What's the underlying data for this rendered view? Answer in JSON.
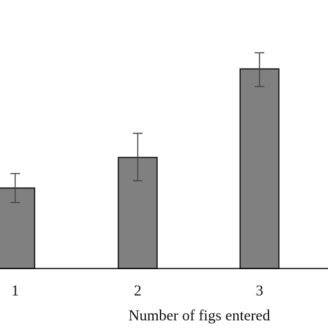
{
  "chart_data": {
    "type": "bar",
    "categories": [
      "1",
      "2",
      "3"
    ],
    "values": [
      1.0,
      1.38,
      2.48
    ],
    "error_upper": [
      1.18,
      1.68,
      2.68
    ],
    "error_lower": [
      0.82,
      1.09,
      2.26
    ],
    "xlabel": "Number of figs entered",
    "ylabel": "",
    "ylim": [
      0,
      3.25
    ],
    "grid": false,
    "legend": "none",
    "colors": {
      "bar_fill": "#808080",
      "bar_stroke": "#000000",
      "axis": "#000000",
      "error_bar": "#444444"
    }
  }
}
